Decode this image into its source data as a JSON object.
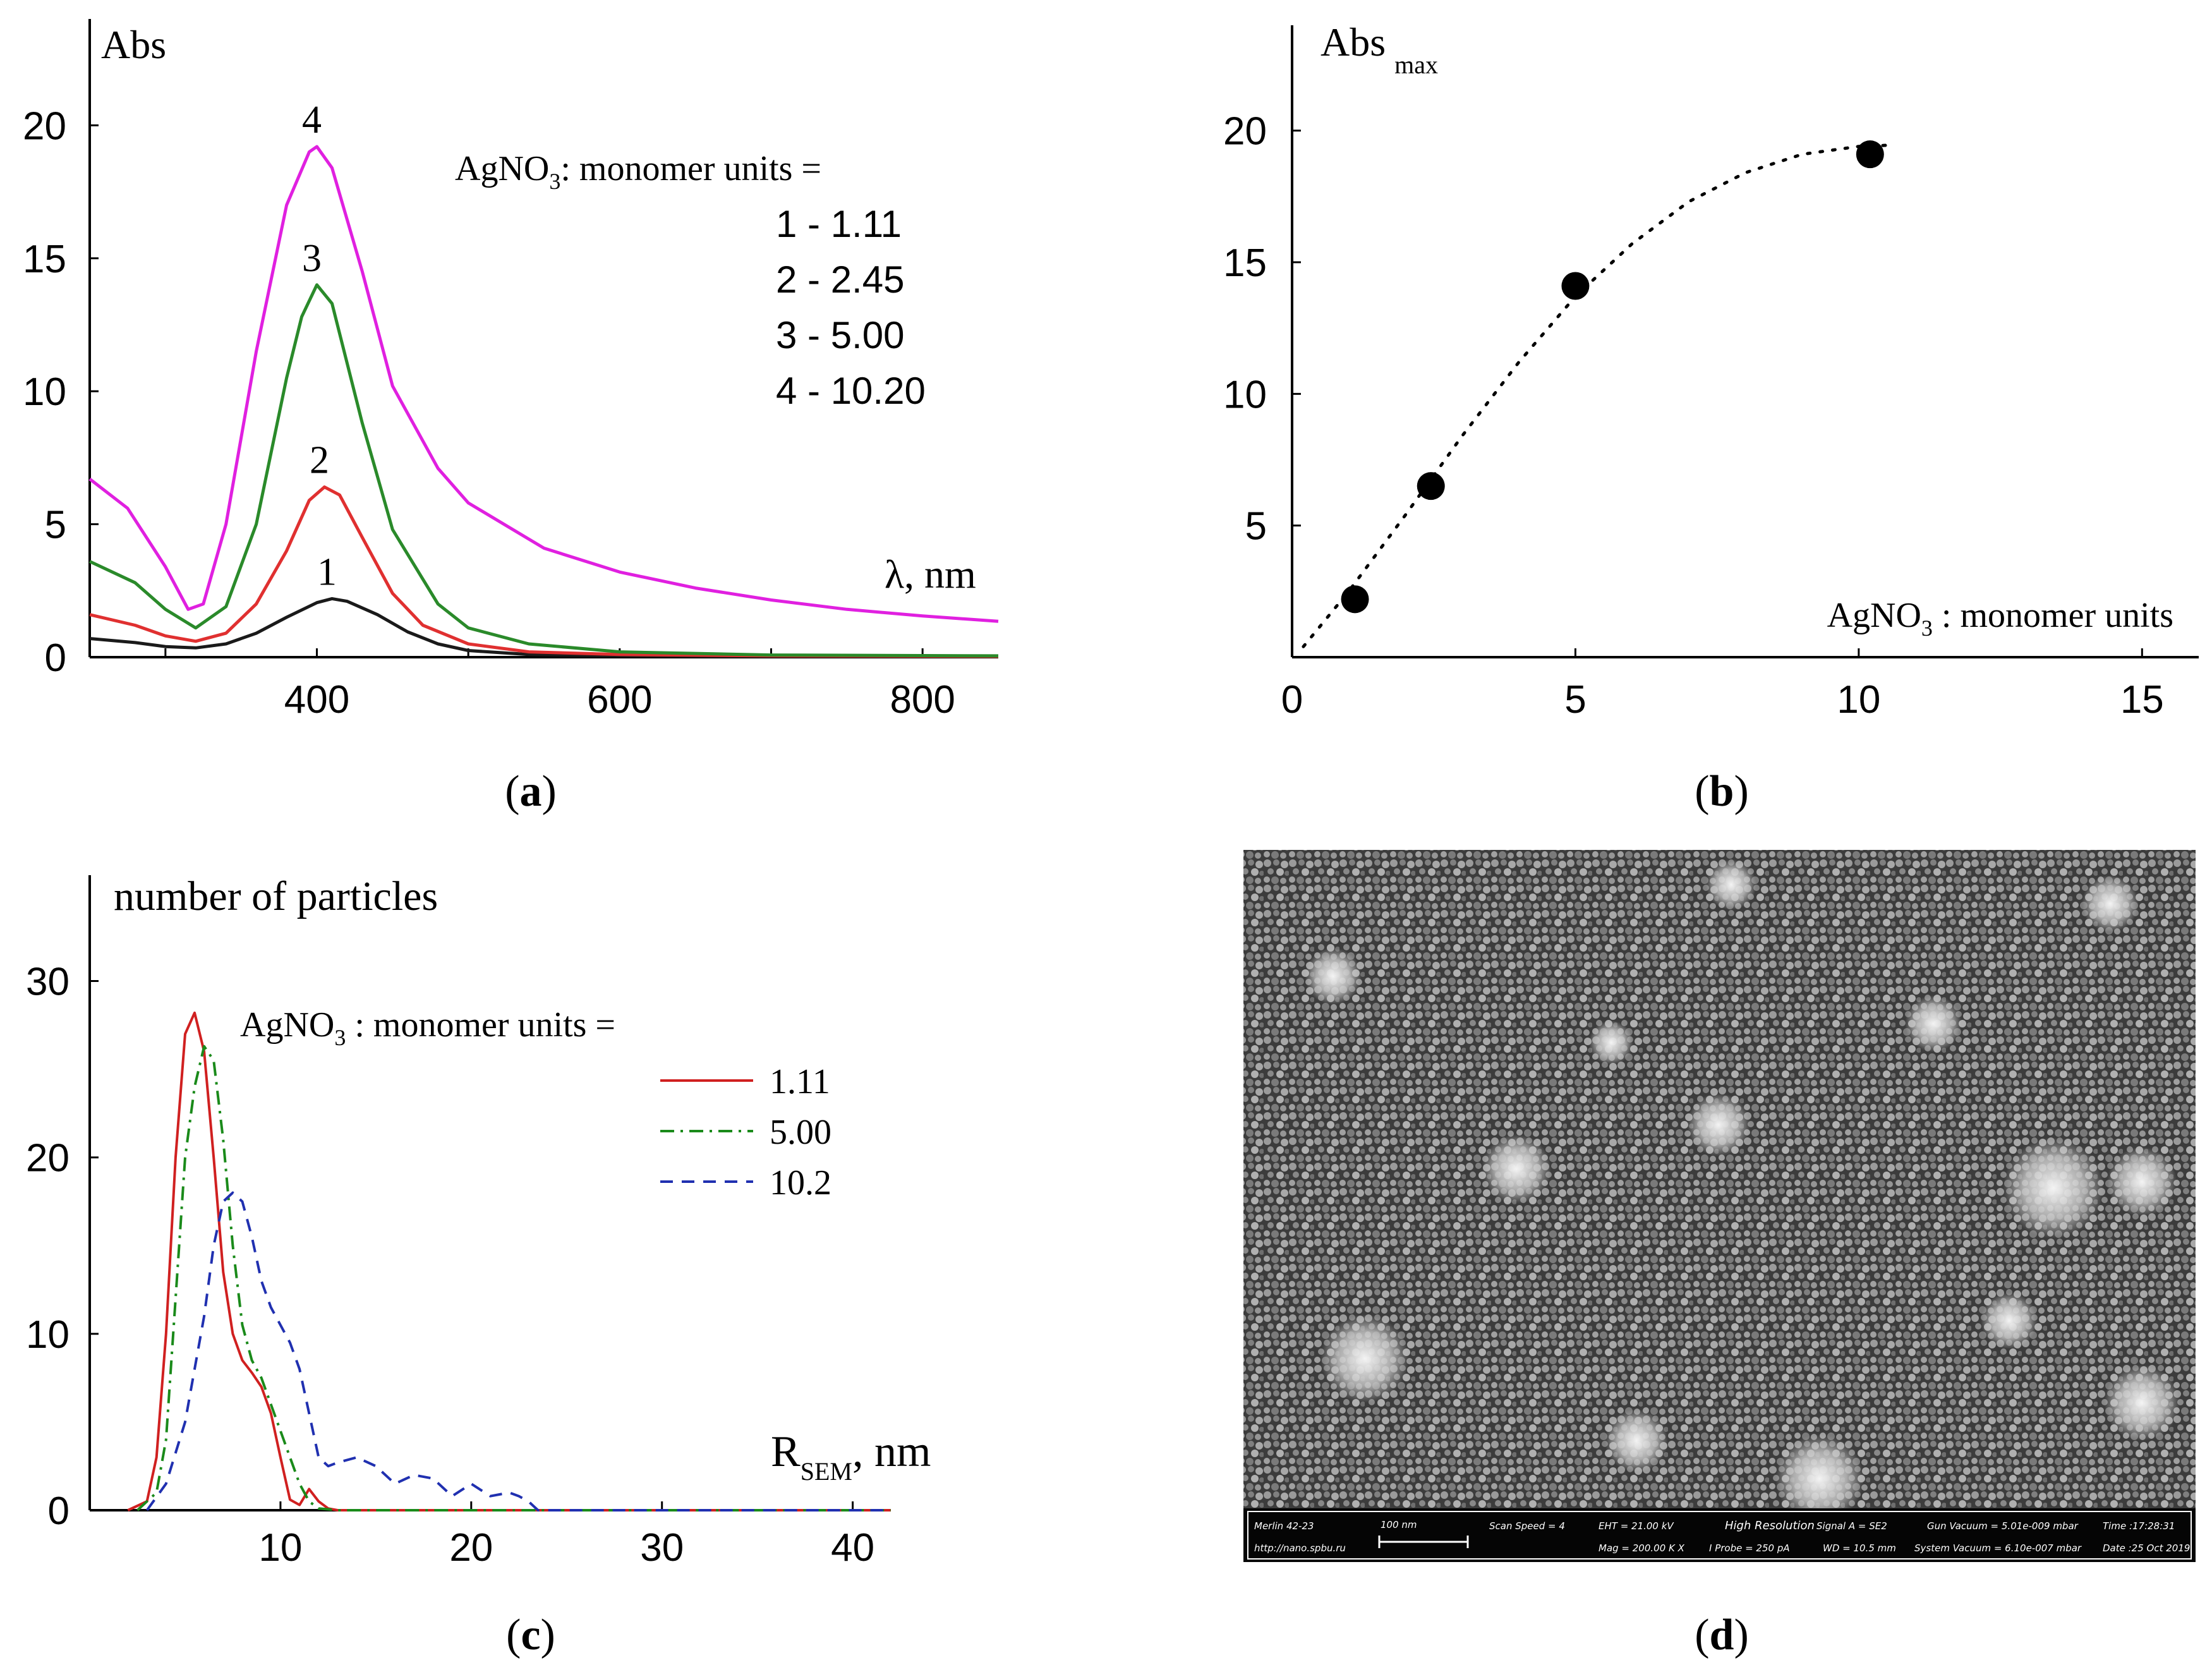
{
  "chart_data": [
    {
      "panel": "a",
      "type": "line",
      "ylabel": "Abs",
      "xlabel": "λ, nm",
      "xlim": [
        250,
        850
      ],
      "ylim": [
        0,
        24
      ],
      "xticks": [
        "400",
        "600",
        "800"
      ],
      "xtick_values": [
        400,
        600,
        800
      ],
      "yticks": [
        "0",
        "5",
        "10",
        "15",
        "20"
      ],
      "ytick_values": [
        0,
        5,
        10,
        15,
        20
      ],
      "legend_title_prefix": "AgNO",
      "legend_title_sub": "3",
      "legend_title_suffix": ": monomer units =",
      "legend_items": [
        "1 - 1.11",
        "2 - 2.45",
        "3 - 5.00",
        "4 - 10.20"
      ],
      "series": [
        {
          "name": "1",
          "ratio": "1.11",
          "color": "#1a1a1a",
          "peak_label": "1",
          "x": [
            250,
            280,
            300,
            320,
            340,
            360,
            380,
            400,
            410,
            420,
            440,
            460,
            480,
            500,
            540,
            600,
            700,
            850
          ],
          "y": [
            0.7,
            0.55,
            0.4,
            0.35,
            0.5,
            0.9,
            1.5,
            2.05,
            2.2,
            2.1,
            1.6,
            0.95,
            0.5,
            0.25,
            0.1,
            0.05,
            0.03,
            0.02
          ]
        },
        {
          "name": "2",
          "ratio": "2.45",
          "color": "#e03030",
          "peak_label": "2",
          "x": [
            250,
            280,
            300,
            320,
            340,
            360,
            380,
            395,
            405,
            415,
            430,
            450,
            470,
            500,
            540,
            600,
            700,
            850
          ],
          "y": [
            1.6,
            1.2,
            0.8,
            0.6,
            0.9,
            2.0,
            4.0,
            5.9,
            6.4,
            6.1,
            4.5,
            2.4,
            1.2,
            0.5,
            0.2,
            0.1,
            0.05,
            0.03
          ]
        },
        {
          "name": "3",
          "ratio": "5.00",
          "color": "#2a8a2a",
          "peak_label": "3",
          "x": [
            250,
            280,
            300,
            320,
            340,
            360,
            380,
            390,
            400,
            410,
            430,
            450,
            480,
            500,
            540,
            600,
            700,
            850
          ],
          "y": [
            3.6,
            2.8,
            1.8,
            1.1,
            1.9,
            5.0,
            10.5,
            12.8,
            14.0,
            13.3,
            8.8,
            4.8,
            2.0,
            1.1,
            0.5,
            0.2,
            0.08,
            0.05
          ]
        },
        {
          "name": "4",
          "ratio": "10.20",
          "color": "#e020e0",
          "peak_label": "4",
          "x": [
            250,
            275,
            300,
            315,
            325,
            340,
            360,
            380,
            395,
            400,
            410,
            430,
            450,
            480,
            500,
            550,
            600,
            650,
            700,
            750,
            800,
            850
          ],
          "y": [
            6.7,
            5.6,
            3.4,
            1.8,
            2.0,
            5.0,
            11.5,
            17.0,
            19.0,
            19.2,
            18.4,
            14.5,
            10.2,
            7.1,
            5.8,
            4.1,
            3.2,
            2.6,
            2.15,
            1.8,
            1.55,
            1.35
          ]
        }
      ]
    },
    {
      "panel": "b",
      "type": "scatter",
      "ylabel": "Abs",
      "ylabel_sub": "max",
      "xlabel_prefix": "AgNO",
      "xlabel_sub": "3",
      "xlabel_suffix": " : monomer units",
      "xlim": [
        0,
        16
      ],
      "ylim": [
        0,
        24
      ],
      "xticks": [
        "0",
        "5",
        "10",
        "15"
      ],
      "xtick_values": [
        0,
        5,
        10,
        15
      ],
      "yticks": [
        "5",
        "10",
        "15",
        "20"
      ],
      "ytick_values": [
        5,
        10,
        15,
        20
      ],
      "points": {
        "x": [
          1.11,
          2.45,
          5.0,
          10.2
        ],
        "y": [
          2.2,
          6.5,
          14.1,
          19.1
        ]
      },
      "fit": {
        "x": [
          0.2,
          1,
          2,
          3,
          4,
          5,
          6,
          7,
          8,
          9,
          10,
          10.6
        ],
        "y": [
          0.4,
          2.5,
          5.4,
          8.4,
          11.2,
          13.7,
          15.7,
          17.3,
          18.4,
          19.1,
          19.4,
          19.45
        ]
      }
    },
    {
      "panel": "c",
      "type": "line",
      "ylabel": "number of particles",
      "xlabel": "R",
      "xlabel_sub": "SEM",
      "xlabel_suffix": ", nm",
      "xlim": [
        0,
        42
      ],
      "ylim": [
        0,
        36
      ],
      "xticks": [
        "10",
        "20",
        "30",
        "40"
      ],
      "xtick_values": [
        10,
        20,
        30,
        40
      ],
      "yticks": [
        "0",
        "10",
        "20",
        "30"
      ],
      "ytick_values": [
        0,
        10,
        20,
        30
      ],
      "legend_title_prefix": "AgNO",
      "legend_title_sub": "3",
      "legend_title_suffix": " : monomer units =",
      "series": [
        {
          "name": "1.11",
          "color": "#d02020",
          "dash": "solid",
          "x": [
            2,
            3,
            3.5,
            4,
            4.5,
            5,
            5.5,
            6,
            6.5,
            7,
            7.5,
            8,
            8.5,
            9,
            9.5,
            10,
            10.5,
            11,
            11.5,
            12,
            12.5,
            13,
            42
          ],
          "y": [
            0,
            0.5,
            3,
            10,
            20,
            27,
            28.2,
            26,
            20,
            13.5,
            10,
            8.5,
            7.8,
            7,
            5.5,
            3,
            0.6,
            0.3,
            1.2,
            0.5,
            0.1,
            0,
            0
          ]
        },
        {
          "name": "5.00",
          "color": "#1a8a1a",
          "dash": "dashdot",
          "x": [
            2.5,
            3.5,
            4,
            4.5,
            5,
            5.5,
            6,
            6.5,
            7,
            7.5,
            8,
            8.5,
            9,
            9.5,
            10,
            10.5,
            11,
            11.5,
            12,
            13,
            42
          ],
          "y": [
            0,
            1,
            4,
            12,
            20,
            24,
            26.3,
            25.5,
            21,
            15,
            10.5,
            8.5,
            7.5,
            6,
            4.5,
            3,
            1.5,
            0.5,
            0.1,
            0,
            0
          ]
        },
        {
          "name": "10.2",
          "color": "#2030b0",
          "dash": "dashed",
          "x": [
            3,
            4,
            5,
            5.5,
            6,
            6.5,
            7,
            7.5,
            8,
            8.5,
            9,
            9.5,
            10,
            10.5,
            11,
            11.5,
            12,
            12.5,
            13,
            14,
            15,
            16,
            17,
            18,
            19,
            20,
            21,
            22,
            22.5,
            23,
            23.5,
            25,
            42
          ],
          "y": [
            0,
            1.5,
            5,
            8,
            11,
            15,
            17.5,
            18,
            17.5,
            15.5,
            13,
            11.5,
            10.5,
            9.5,
            8,
            5.5,
            3,
            2.5,
            2.7,
            3,
            2.5,
            1.5,
            2,
            1.8,
            0.8,
            1.5,
            0.8,
            1.0,
            0.8,
            0.5,
            0,
            0,
            0
          ]
        }
      ]
    }
  ],
  "panel_labels": {
    "a": "a",
    "b": "b",
    "c": "c",
    "d": "d"
  },
  "sem_image": {
    "description_panel": "d",
    "info_bar": {
      "instrument": "Merlin 42-23",
      "scale_bar": "100 nm",
      "scan_speed": "Scan Speed = 4",
      "eht": "EHT = 21.00 kV",
      "mode": "High Resolution",
      "signal": "Signal A = SE2",
      "gun_vacuum": "Gun Vacuum = 5.01e-009 mbar",
      "time": "Time :17:28:31",
      "url": "http://nano.spbu.ru",
      "mag": "Mag = 200.00 K X",
      "i_probe": "I Probe = 250 pA",
      "wd": "WD = 10.5 mm",
      "system_vacuum": "System Vacuum = 6.10e-007 mbar",
      "date": "Date :25 Oct 2019"
    }
  }
}
